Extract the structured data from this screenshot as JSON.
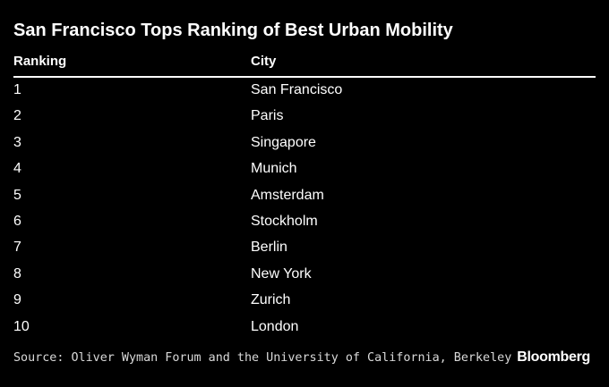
{
  "title": "San Francisco Tops Ranking of Best Urban Mobility",
  "headers": {
    "rank": "Ranking",
    "city": "City"
  },
  "chart_data": {
    "type": "table",
    "title": "San Francisco Tops Ranking of Best Urban Mobility",
    "columns": [
      "Ranking",
      "City"
    ],
    "rows": [
      [
        "1",
        "San Francisco"
      ],
      [
        "2",
        "Paris"
      ],
      [
        "3",
        "Singapore"
      ],
      [
        "4",
        "Munich"
      ],
      [
        "5",
        "Amsterdam"
      ],
      [
        "6",
        "Stockholm"
      ],
      [
        "7",
        "Berlin"
      ],
      [
        "8",
        "New York"
      ],
      [
        "9",
        "Zurich"
      ],
      [
        "10",
        "London"
      ]
    ]
  },
  "source": "Source: Oliver Wyman Forum and the University of California, Berkeley",
  "brand": "Bloomberg"
}
